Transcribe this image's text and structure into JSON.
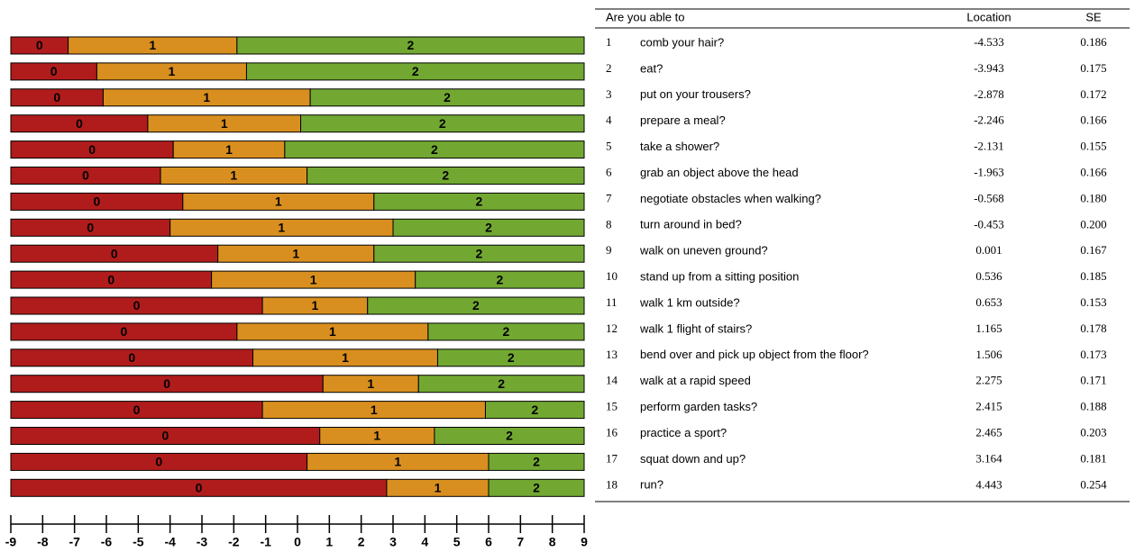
{
  "chart_data": {
    "type": "threshold-bar",
    "levels": [
      {
        "label": "0",
        "color": "#b01c1c"
      },
      {
        "label": "1",
        "color": "#d98f1f"
      },
      {
        "label": "2",
        "color": "#72a832"
      }
    ],
    "thresholds": [
      [
        -7.2,
        -1.9
      ],
      [
        -6.3,
        -1.6
      ],
      [
        -6.1,
        0.4
      ],
      [
        -4.7,
        0.1
      ],
      [
        -3.9,
        -0.4
      ],
      [
        -4.3,
        0.3
      ],
      [
        -3.6,
        2.4
      ],
      [
        -4.0,
        3.0
      ],
      [
        -2.5,
        2.4
      ],
      [
        -2.7,
        3.7
      ],
      [
        -1.1,
        2.2
      ],
      [
        -1.9,
        4.1
      ],
      [
        -1.4,
        4.4
      ],
      [
        0.8,
        3.8
      ],
      [
        -1.1,
        5.9
      ],
      [
        0.7,
        4.3
      ],
      [
        0.3,
        6.0
      ],
      [
        2.8,
        6.0
      ]
    ],
    "xlim": [
      -9,
      9
    ],
    "xticks": [
      -9,
      -8,
      -7,
      -6,
      -5,
      -4,
      -3,
      -2,
      -1,
      0,
      1,
      2,
      3,
      4,
      5,
      6,
      7,
      8,
      9
    ]
  },
  "table": {
    "header": [
      "Are you able to",
      "Location",
      "SE"
    ],
    "rows": [
      [
        "1",
        "comb your hair?",
        "-4.533",
        "0.186"
      ],
      [
        "2",
        "eat?",
        "-3.943",
        "0.175"
      ],
      [
        "3",
        "put on your trousers?",
        "-2.878",
        "0.172"
      ],
      [
        "4",
        "prepare a meal?",
        "-2.246",
        "0.166"
      ],
      [
        "5",
        "take a shower?",
        "-2.131",
        "0.155"
      ],
      [
        "6",
        "grab an object above the head",
        "-1.963",
        "0.166"
      ],
      [
        "7",
        "negotiate obstacles when walking?",
        "-0.568",
        "0.180"
      ],
      [
        "8",
        "turn around in bed?",
        "-0.453",
        "0.200"
      ],
      [
        "9",
        "walk on uneven ground?",
        "0.001",
        "0.167"
      ],
      [
        "10",
        "stand up from a sitting position",
        "0.536",
        "0.185"
      ],
      [
        "11",
        "walk 1 km outside?",
        "0.653",
        "0.153"
      ],
      [
        "12",
        "walk 1 flight of stairs?",
        "1.165",
        "0.178"
      ],
      [
        "13",
        "bend over and pick up object from the floor?",
        "1.506",
        "0.173"
      ],
      [
        "14",
        "walk at a rapid speed",
        "2.275",
        "0.171"
      ],
      [
        "15",
        "perform garden tasks?",
        "2.415",
        "0.188"
      ],
      [
        "16",
        "practice a sport?",
        "2.465",
        "0.203"
      ],
      [
        "17",
        "squat down and up?",
        "3.164",
        "0.181"
      ],
      [
        "18",
        "run?",
        "4.443",
        "0.254"
      ]
    ]
  }
}
